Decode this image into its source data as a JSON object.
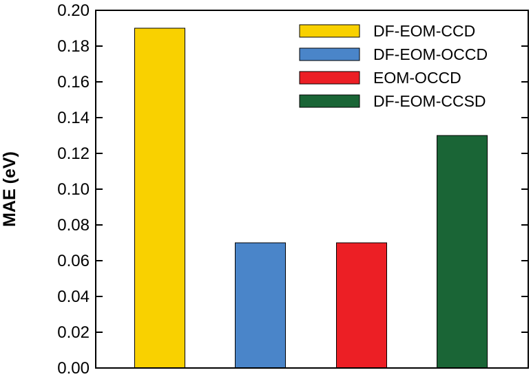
{
  "chart_data": {
    "type": "bar",
    "title": "",
    "xlabel": "",
    "ylabel": "MAE (eV)",
    "ylim": [
      0,
      0.2
    ],
    "yticks": [
      "0.00",
      "0.02",
      "0.04",
      "0.06",
      "0.08",
      "0.10",
      "0.12",
      "0.14",
      "0.16",
      "0.18",
      "0.20"
    ],
    "grid": false,
    "legend_position": "top-right",
    "series": [
      {
        "name": "DF-EOM-CCD",
        "value": 0.19,
        "color": "#F9D100"
      },
      {
        "name": "DF-EOM-OCCD",
        "value": 0.07,
        "color": "#4A85C9"
      },
      {
        "name": "EOM-OCCD",
        "value": 0.07,
        "color": "#EC1F25"
      },
      {
        "name": "DF-EOM-CCSD",
        "value": 0.13,
        "color": "#1A6536"
      }
    ]
  }
}
